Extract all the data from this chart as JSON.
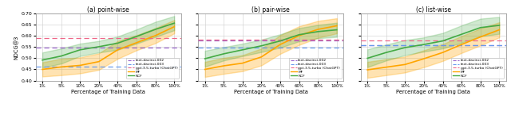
{
  "x_ticks": [
    "1%",
    "5%",
    "10%",
    "20%",
    "40%",
    "60%",
    "80%",
    "100%"
  ],
  "x_vals": [
    0,
    1,
    2,
    3,
    4,
    5,
    6,
    7
  ],
  "ylim": [
    0.4,
    0.7
  ],
  "yticks": [
    0.4,
    0.45,
    0.5,
    0.55,
    0.6,
    0.65,
    0.7
  ],
  "ylabel": "NDCG@3",
  "xlabel": "Percentage of Training Data",
  "subplots": [
    {
      "title": "(a) point-wise",
      "hlines": {
        "text_davinci_002": 0.547,
        "text_davinci_003": 0.462,
        "gpt35": 0.591
      },
      "MF_mean": [
        0.45,
        0.461,
        0.468,
        0.485,
        0.538,
        0.57,
        0.602,
        0.642
      ],
      "MF_low": [
        0.418,
        0.424,
        0.432,
        0.448,
        0.498,
        0.536,
        0.568,
        0.612
      ],
      "MF_high": [
        0.482,
        0.498,
        0.504,
        0.522,
        0.578,
        0.604,
        0.636,
        0.672
      ],
      "NCF_mean": [
        0.492,
        0.51,
        0.538,
        0.552,
        0.568,
        0.598,
        0.63,
        0.658
      ],
      "NCF_low": [
        0.458,
        0.476,
        0.51,
        0.526,
        0.538,
        0.566,
        0.596,
        0.626
      ],
      "NCF_high": [
        0.526,
        0.544,
        0.566,
        0.578,
        0.598,
        0.63,
        0.664,
        0.69
      ]
    },
    {
      "title": "(b) pair-wise",
      "hlines": {
        "text_davinci_002": 0.58,
        "text_davinci_003": 0.549,
        "gpt35": 0.583
      },
      "MF_mean": [
        0.45,
        0.466,
        0.478,
        0.506,
        0.562,
        0.602,
        0.63,
        0.646
      ],
      "MF_low": [
        0.416,
        0.43,
        0.442,
        0.468,
        0.52,
        0.56,
        0.592,
        0.612
      ],
      "MF_high": [
        0.484,
        0.502,
        0.514,
        0.544,
        0.604,
        0.644,
        0.668,
        0.68
      ],
      "NCF_mean": [
        0.498,
        0.52,
        0.538,
        0.556,
        0.578,
        0.606,
        0.62,
        0.628
      ],
      "NCF_low": [
        0.462,
        0.49,
        0.51,
        0.528,
        0.548,
        0.576,
        0.59,
        0.596
      ],
      "NCF_high": [
        0.534,
        0.55,
        0.566,
        0.584,
        0.608,
        0.636,
        0.65,
        0.66
      ]
    },
    {
      "title": "(c) list-wise",
      "hlines": {
        "text_davinci_002": 0.558,
        "text_davinci_003": 0.557,
        "gpt35": 0.58
      },
      "MF_mean": [
        0.448,
        0.46,
        0.472,
        0.498,
        0.526,
        0.562,
        0.596,
        0.628
      ],
      "MF_low": [
        0.412,
        0.424,
        0.436,
        0.46,
        0.488,
        0.524,
        0.558,
        0.594
      ],
      "MF_high": [
        0.484,
        0.496,
        0.508,
        0.536,
        0.564,
        0.6,
        0.634,
        0.662
      ],
      "NCF_mean": [
        0.5,
        0.526,
        0.548,
        0.562,
        0.578,
        0.608,
        0.638,
        0.648
      ],
      "NCF_low": [
        0.46,
        0.49,
        0.514,
        0.53,
        0.544,
        0.57,
        0.598,
        0.61
      ],
      "NCF_high": [
        0.54,
        0.562,
        0.582,
        0.594,
        0.614,
        0.648,
        0.678,
        0.686
      ]
    }
  ],
  "colors": {
    "text_davinci_002": "#9966CC",
    "text_davinci_003": "#6699EE",
    "gpt35": "#EE6688",
    "MF": "#FFA500",
    "NCF": "#44AA44"
  },
  "legend_labels": [
    "text-davinci-002",
    "text-davinci-003",
    "gpt-3.5-turbo (ChatGPT)",
    "MF",
    "NCF"
  ]
}
